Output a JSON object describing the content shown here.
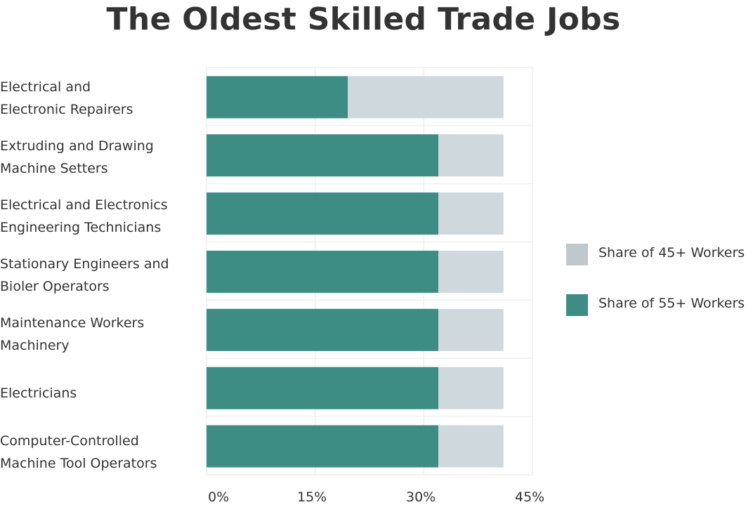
{
  "title": "The Oldest Skilled Trade Jobs",
  "chart_data": {
    "type": "bar",
    "orientation": "horizontal",
    "stacked": false,
    "title": "The Oldest Skilled Trade Jobs",
    "categories": [
      "Electrical and\nElectronic Repairers",
      "Extruding and Drawing\nMachine Setters",
      "Electrical and Electronics\nEngineering Technicians",
      "Stationary Engineers and\nBioler Operators",
      "Maintenance Workers\nMachinery",
      "Electricians",
      "Computer-Controlled\nMachine Tool  Operators"
    ],
    "series": [
      {
        "name": "Share of 45+ Workers",
        "color": "#cfd8dc",
        "values": [
          41,
          41,
          41,
          41,
          41,
          41,
          41
        ]
      },
      {
        "name": "Share of 55+ Workers",
        "color": "#3d8d84",
        "values": [
          19.5,
          32,
          32,
          32,
          32,
          32,
          32
        ]
      }
    ],
    "x_ticks": [
      "0%",
      "15%",
      "30%",
      "45%"
    ],
    "x_tick_values": [
      0,
      15,
      30,
      45
    ],
    "xlim": [
      0,
      45
    ],
    "grid": true,
    "legend_position": "right"
  }
}
